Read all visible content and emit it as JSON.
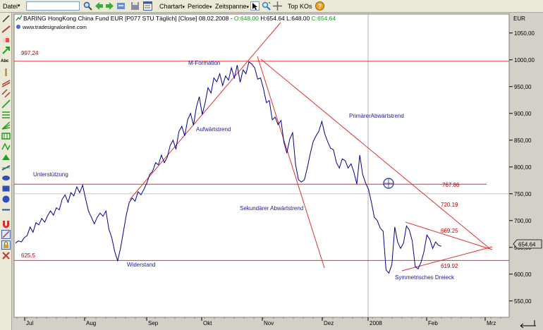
{
  "toolbar": {
    "file_menu": "Datei",
    "charttype_menu": "Chartart",
    "period_menu": "Periode",
    "timespan_menu": "Zeitspanne",
    "top_kos": "Top KOs"
  },
  "chart_header": {
    "instrument": "BARING HongKong China Fund EUR [P077 STU  Täglich] [Close] 08.02.2008 - ",
    "open_value": "O:648.00",
    "high_value": "H:654.64",
    "low_value": "L:648.00",
    "close_value": "C:654.64",
    "source": "www.tradesignalonline.com",
    "currency": "EUR",
    "last_price": "654.64"
  },
  "colors": {
    "price_line": "#00008b",
    "trend_lines": "#e03030",
    "annotation_text": "#1a1aa0",
    "level_text": "#b00000",
    "last_price_badge": "#d4d0c8"
  },
  "chart_data": {
    "type": "line",
    "ylim": [
      530,
      1070
    ],
    "y_ticks": [
      550,
      600,
      650,
      700,
      750,
      800,
      850,
      900,
      950,
      1000,
      1050
    ],
    "y_tick_labels": [
      "550,00",
      "600,00",
      "650,00",
      "700,00",
      "750,00",
      "800,00",
      "850,00",
      "900,00",
      "950,00",
      "1000,00",
      "1050,00"
    ],
    "x_tick_labels": [
      "Jul",
      "Aug",
      "Sep",
      "Okt",
      "Nov",
      "Dez",
      "2008",
      "Feb",
      "Mrz"
    ],
    "horizontal_levels": [
      {
        "value": 997.24,
        "label": "997.24"
      },
      {
        "value": 767.86,
        "label": "767.86"
      },
      {
        "value": 625.5,
        "label": "625.5"
      }
    ],
    "level_labels": [
      "720.19",
      "669.25",
      "619.92"
    ],
    "annotations": [
      "M-Formation",
      "Aufwärtstrend",
      "PrimärerAbwärtstrend",
      "Unterstützung",
      "Sekundärer Abwärtstrend",
      "Widerstand",
      "Symmetrisches Dreieck"
    ],
    "series": [
      {
        "values": [
          658,
          662,
          660,
          668,
          672,
          688,
          678,
          696,
          692,
          704,
          697,
          709,
          718,
          710,
          724,
          720,
          740,
          748,
          734,
          752,
          746,
          763,
          752,
          766,
          741,
          718,
          706,
          694,
          706,
          714,
          708,
          718,
          684,
          668,
          642,
          625,
          648,
          680,
          711,
          734,
          742,
          736,
          754,
          748,
          758,
          770,
          786,
          792,
          808,
          804,
          822,
          808,
          818,
          840,
          850,
          833,
          866,
          876,
          858,
          888,
          900,
          878,
          912,
          931,
          898,
          920,
          948,
          938,
          966,
          959,
          974,
          952,
          970,
          962,
          985,
          966,
          990,
          958,
          981,
          974,
          996,
          992,
          985,
          964,
          966,
          946,
          920,
          924,
          888,
          893,
          879,
          887,
          846,
          826,
          852,
          864,
          804,
          776,
          772,
          776,
          798,
          824,
          847,
          858,
          867,
          885,
          862,
          847,
          835,
          832,
          808,
          798,
          815,
          812,
          798,
          806,
          790,
          768,
          822,
          786,
          770,
          758,
          734,
          706,
          700,
          686,
          680,
          608,
          602,
          618,
          688,
          660,
          648,
          658,
          690,
          682,
          662,
          614,
          610,
          622,
          642,
          673,
          665,
          648,
          660,
          654,
          652
        ]
      }
    ]
  }
}
